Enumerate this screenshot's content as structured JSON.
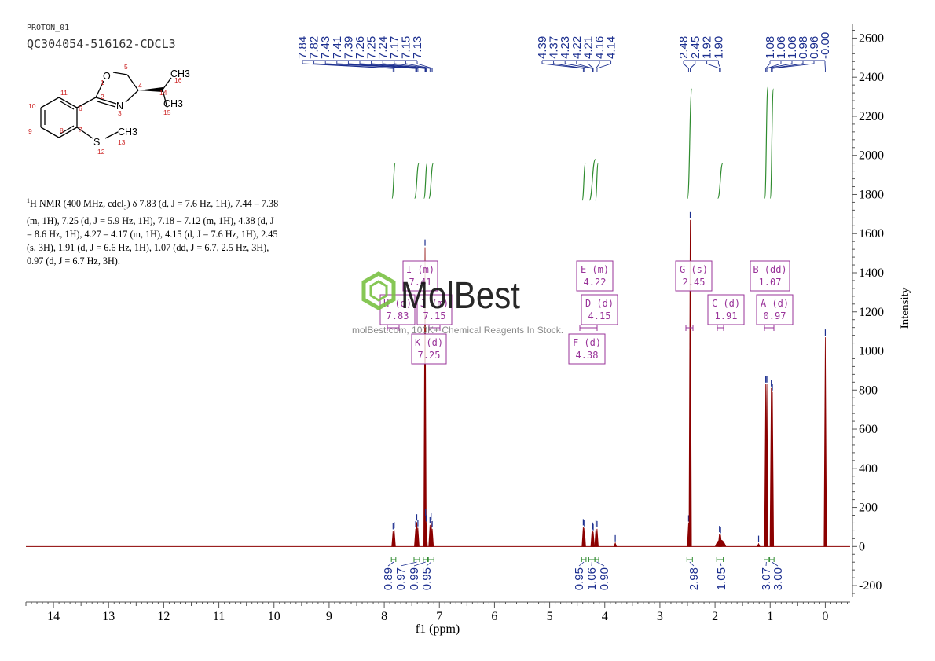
{
  "header": {
    "line1": "PROTON_01",
    "line2": "QC304054-516162-CDCL3"
  },
  "structure": {
    "atom_numbers": [
      "1",
      "2",
      "3",
      "4",
      "5",
      "6",
      "7",
      "8",
      "9",
      "10",
      "11",
      "12",
      "13",
      "14",
      "15",
      "16"
    ],
    "atom_labels": {
      "O": "O",
      "N": "N",
      "S": "S",
      "CH3": "CH3",
      "H3": "H",
      "sub3": "3"
    }
  },
  "nmr_text": "1H NMR (400 MHz, cdcl3) δ 7.83 (d, J = 7.6 Hz, 1H), 7.44 – 7.38 (m, 1H), 7.25 (d, J = 5.9 Hz, 1H), 7.18 – 7.12 (m, 1H), 4.38 (d, J = 8.6 Hz, 1H), 4.27 – 4.17 (m, 1H), 4.15 (d, J = 7.6 Hz, 1H), 2.45 (s, 3H), 1.91 (d, J = 6.6 Hz, 1H), 1.07 (dd, J = 6.7, 2.5 Hz, 3H), 0.97 (d, J = 6.7 Hz, 3H).",
  "watermark": {
    "logo": "MolBest",
    "url": "molBest.com, 100K+ Chemical Reagents In Stock."
  },
  "chart_data": {
    "type": "line",
    "xlabel": "f1 (ppm)",
    "ylabel": "Intensity",
    "xlim": [
      14.5,
      -0.45
    ],
    "ylim": [
      -260,
      2650
    ],
    "x_ticks": [
      14,
      13,
      12,
      11,
      10,
      9,
      8,
      7,
      6,
      5,
      4,
      3,
      2,
      1,
      0
    ],
    "y_ticks": [
      2600,
      2400,
      2200,
      2000,
      1800,
      1600,
      1400,
      1200,
      1000,
      800,
      600,
      400,
      200,
      0,
      -200
    ],
    "peaks": [
      {
        "ppm": 7.84,
        "height": 80
      },
      {
        "ppm": 7.82,
        "height": 85
      },
      {
        "ppm": 7.43,
        "height": 90
      },
      {
        "ppm": 7.41,
        "height": 125
      },
      {
        "ppm": 7.39,
        "height": 95
      },
      {
        "ppm": 7.26,
        "height": 1530
      },
      {
        "ppm": 7.25,
        "height": 150
      },
      {
        "ppm": 7.24,
        "height": 120
      },
      {
        "ppm": 7.17,
        "height": 110
      },
      {
        "ppm": 7.15,
        "height": 130
      },
      {
        "ppm": 7.13,
        "height": 90
      },
      {
        "ppm": 4.39,
        "height": 100
      },
      {
        "ppm": 4.37,
        "height": 95
      },
      {
        "ppm": 4.23,
        "height": 85
      },
      {
        "ppm": 4.22,
        "height": 80
      },
      {
        "ppm": 4.21,
        "height": 75
      },
      {
        "ppm": 4.16,
        "height": 95
      },
      {
        "ppm": 4.14,
        "height": 90
      },
      {
        "ppm": 2.48,
        "height": 120
      },
      {
        "ppm": 2.45,
        "height": 1670
      },
      {
        "ppm": 1.92,
        "height": 65
      },
      {
        "ppm": 1.9,
        "height": 60
      },
      {
        "ppm": 1.08,
        "height": 830
      },
      {
        "ppm": 1.06,
        "height": 830
      },
      {
        "ppm": 0.98,
        "height": 810
      },
      {
        "ppm": 0.96,
        "height": 790
      },
      {
        "ppm": 0.0,
        "height": 1070
      },
      {
        "ppm": 3.81,
        "height": 18
      },
      {
        "ppm": 1.21,
        "height": 15
      }
    ],
    "top_peak_labels": [
      "7.84",
      "7.82",
      "7.43",
      "7.41",
      "7.39",
      "7.26",
      "7.25",
      "7.24",
      "7.17",
      "7.15",
      "7.13",
      "4.39",
      "4.37",
      "4.23",
      "4.22",
      "4.21",
      "4.16",
      "4.14",
      "2.48",
      "2.45",
      "1.92",
      "1.90",
      "1.08",
      "1.06",
      "1.06",
      "0.98",
      "0.96",
      "-0.00"
    ],
    "top_label_peaks": [
      7.84,
      7.82,
      7.43,
      7.41,
      7.39,
      7.26,
      7.25,
      7.24,
      7.17,
      7.15,
      7.13,
      4.39,
      4.37,
      4.23,
      4.22,
      4.21,
      4.16,
      4.14,
      2.48,
      2.45,
      1.92,
      1.9,
      1.08,
      1.06,
      1.06,
      0.98,
      0.96,
      0.0
    ],
    "integration_curves": [
      {
        "ppm": [
          7.86,
          7.8
        ],
        "y": [
          1780,
          1960
        ]
      },
      {
        "ppm": [
          7.45,
          7.37
        ],
        "y": [
          1780,
          1960
        ]
      },
      {
        "ppm": [
          7.28,
          7.22
        ],
        "y": [
          1780,
          1960
        ]
      },
      {
        "ppm": [
          7.19,
          7.11
        ],
        "y": [
          1780,
          1960
        ]
      },
      {
        "ppm": [
          4.41,
          4.35
        ],
        "y": [
          1770,
          1960
        ]
      },
      {
        "ppm": [
          4.28,
          4.17
        ],
        "y": [
          1770,
          1980
        ]
      },
      {
        "ppm": [
          4.17,
          4.12
        ],
        "y": [
          1770,
          1960
        ]
      },
      {
        "ppm": [
          2.5,
          2.42
        ],
        "y": [
          1780,
          2340
        ]
      },
      {
        "ppm": [
          1.95,
          1.86
        ],
        "y": [
          1780,
          1960
        ]
      },
      {
        "ppm": [
          1.1,
          1.04
        ],
        "y": [
          1780,
          2350
        ]
      },
      {
        "ppm": [
          1.0,
          0.94
        ],
        "y": [
          1780,
          2340
        ]
      }
    ],
    "multiplets": [
      {
        "label": "I (m)",
        "value": "7.41"
      },
      {
        "label": "H (d)",
        "value": "7.83"
      },
      {
        "label": "J (m)",
        "value": "7.15"
      },
      {
        "label": "K (d)",
        "value": "7.25"
      },
      {
        "label": "E (m)",
        "value": "4.22"
      },
      {
        "label": "D (d)",
        "value": "4.15"
      },
      {
        "label": "F (d)",
        "value": "4.38"
      },
      {
        "label": "G (s)",
        "value": "2.45"
      },
      {
        "label": "C (d)",
        "value": "1.91"
      },
      {
        "label": "B (dd)",
        "value": "1.07"
      },
      {
        "label": "A (d)",
        "value": "0.97"
      }
    ],
    "integrals": [
      {
        "value": "0.89",
        "from": 7.87,
        "to": 7.79
      },
      {
        "value": "0.97",
        "from": 7.46,
        "to": 7.36
      },
      {
        "value": "0.99",
        "from": 7.29,
        "to": 7.21
      },
      {
        "value": "0.95",
        "from": 7.2,
        "to": 7.1
      },
      {
        "value": "0.95",
        "from": 4.42,
        "to": 4.34
      },
      {
        "value": "1.06",
        "from": 4.29,
        "to": 4.18
      },
      {
        "value": "0.90",
        "from": 4.18,
        "to": 4.11
      },
      {
        "value": "2.98",
        "from": 2.51,
        "to": 2.41
      },
      {
        "value": "1.05",
        "from": 1.97,
        "to": 1.85
      },
      {
        "value": "3.07",
        "from": 1.11,
        "to": 1.03
      },
      {
        "value": "3.00",
        "from": 1.01,
        "to": 0.93
      }
    ],
    "colors": {
      "spectrum": "#8b0000",
      "labels": "#1c2f8f",
      "integration": "#2e8b2e",
      "boxes": "#993399",
      "axis": "#555555"
    }
  }
}
